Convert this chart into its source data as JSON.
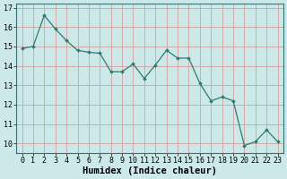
{
  "x": [
    0,
    1,
    2,
    3,
    4,
    5,
    6,
    7,
    8,
    9,
    10,
    11,
    12,
    13,
    14,
    15,
    16,
    17,
    18,
    19,
    20,
    21,
    22,
    23
  ],
  "y": [
    14.9,
    15.0,
    16.6,
    15.9,
    15.3,
    14.8,
    14.7,
    14.65,
    13.7,
    13.7,
    14.1,
    13.35,
    14.05,
    14.8,
    14.4,
    14.4,
    13.1,
    12.2,
    12.4,
    12.2,
    9.9,
    10.1,
    10.7,
    10.1
  ],
  "line_color": "#2e7d6e",
  "marker": "D",
  "marker_size": 2.0,
  "bg_color": "#cce8e8",
  "grid_color": "#d4a0a0",
  "xlabel": "Humidex (Indice chaleur)",
  "xlim": [
    -0.5,
    23.5
  ],
  "ylim": [
    9.5,
    17.2
  ],
  "yticks": [
    10,
    11,
    12,
    13,
    14,
    15,
    16,
    17
  ],
  "xticks": [
    0,
    1,
    2,
    3,
    4,
    5,
    6,
    7,
    8,
    9,
    10,
    11,
    12,
    13,
    14,
    15,
    16,
    17,
    18,
    19,
    20,
    21,
    22,
    23
  ],
  "xlabel_fontsize": 7.5,
  "tick_fontsize": 6.0
}
